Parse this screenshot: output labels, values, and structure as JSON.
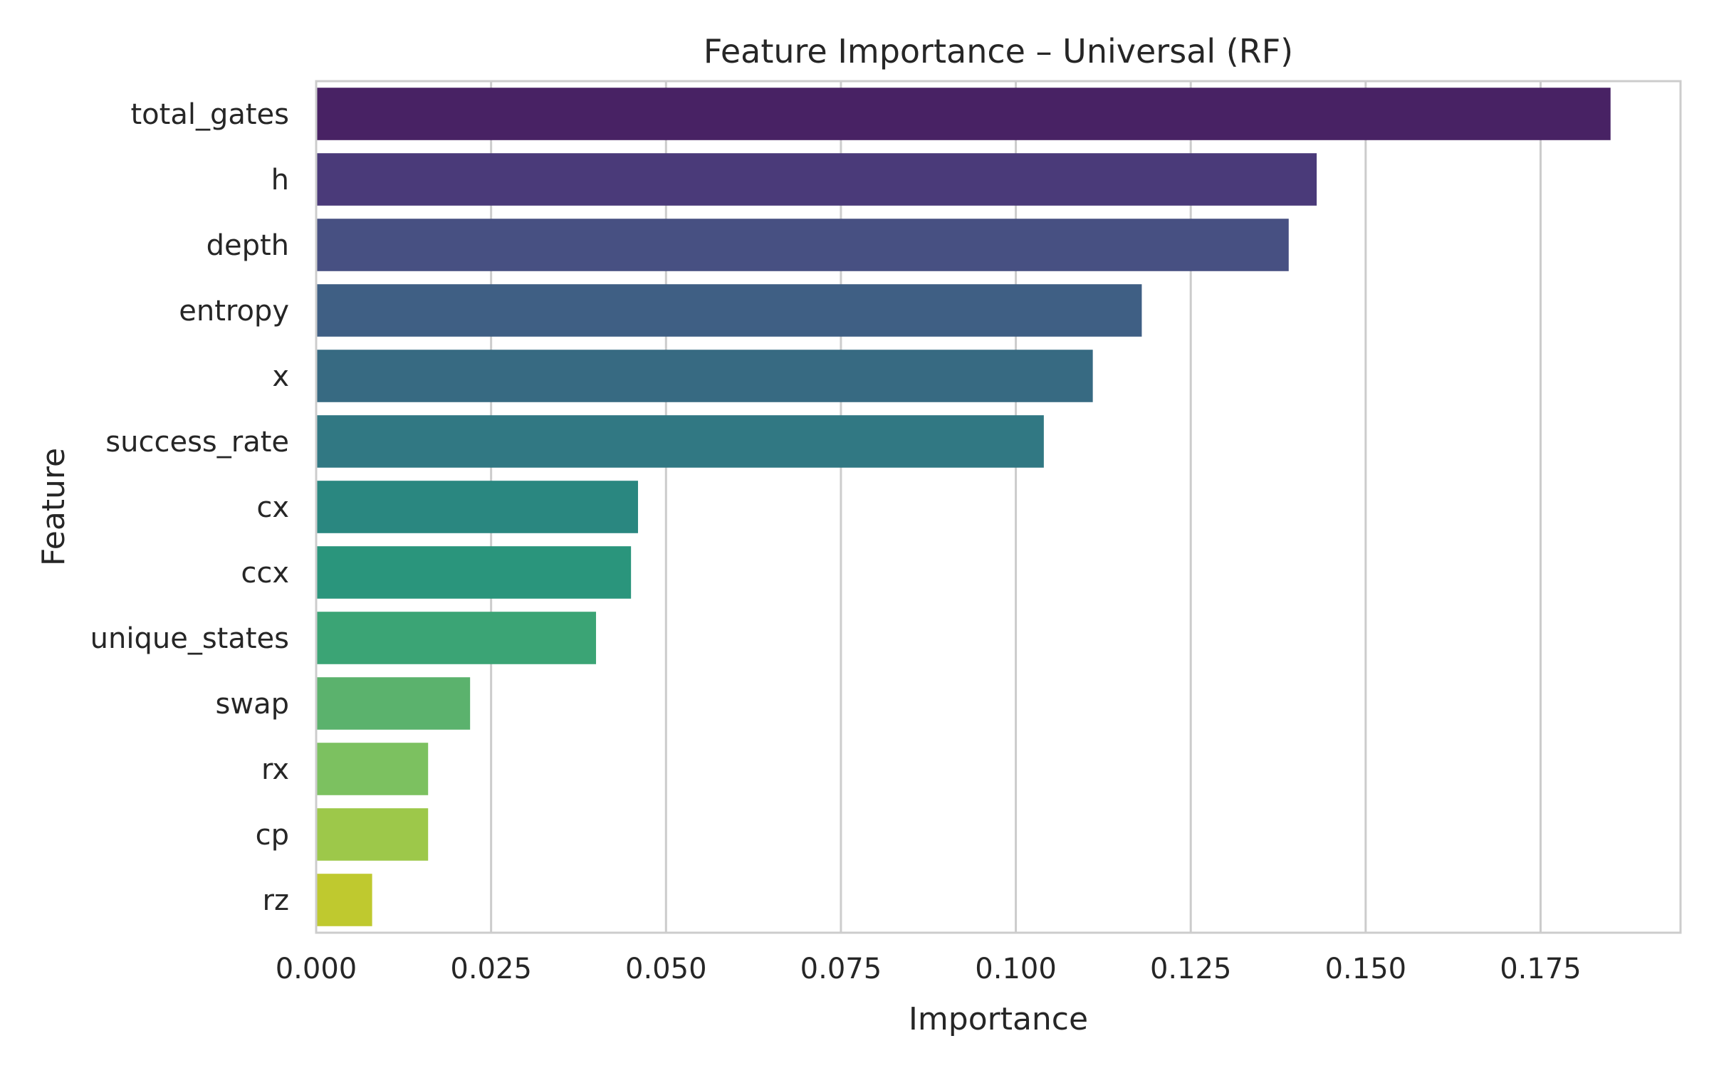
{
  "chart_data": {
    "type": "bar",
    "orientation": "horizontal",
    "title": "Feature Importance – Universal (RF)",
    "xlabel": "Importance",
    "ylabel": "Feature",
    "xlim": [
      0,
      0.195
    ],
    "xticks": [
      0.0,
      0.025,
      0.05,
      0.075,
      0.1,
      0.125,
      0.15,
      0.175
    ],
    "xtick_labels": [
      "0.000",
      "0.025",
      "0.050",
      "0.075",
      "0.100",
      "0.125",
      "0.150",
      "0.175"
    ],
    "grid": "x-major",
    "legend": "none",
    "categories": [
      "total_gates",
      "h",
      "depth",
      "entropy",
      "x",
      "success_rate",
      "cx",
      "ccx",
      "unique_states",
      "swap",
      "rx",
      "cp",
      "rz"
    ],
    "values": [
      0.185,
      0.143,
      0.139,
      0.118,
      0.111,
      0.104,
      0.046,
      0.045,
      0.04,
      0.022,
      0.016,
      0.016,
      0.008
    ],
    "colors": [
      "#482264",
      "#4a3a79",
      "#475082",
      "#3f5f84",
      "#376a82",
      "#317883",
      "#2a8780",
      "#2a957c",
      "#3ba475",
      "#5bb26d",
      "#7cc160",
      "#9dc84a",
      "#bfc92f"
    ],
    "style": {
      "background": "#ffffff",
      "grid_color": "#cccccc",
      "spine_color": "#cccccc",
      "text_color": "#262626"
    }
  }
}
